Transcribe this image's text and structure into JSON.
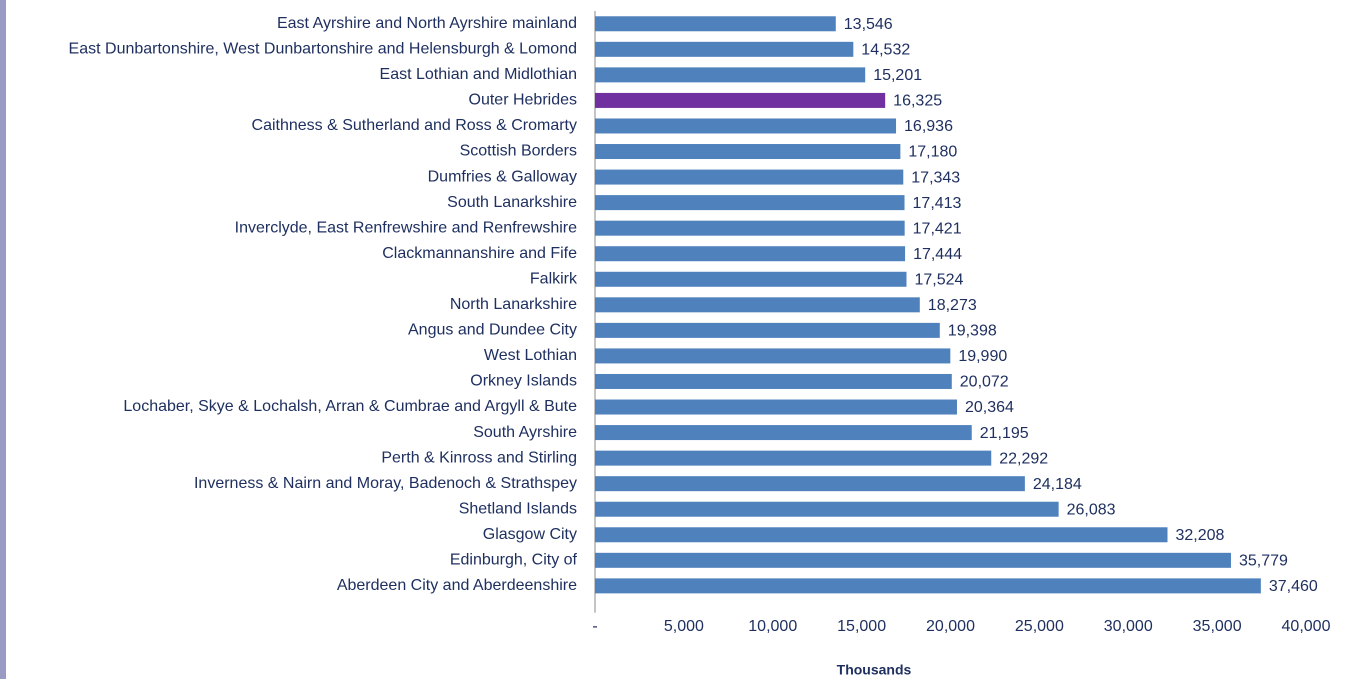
{
  "chart_data": {
    "type": "barh",
    "categories": [
      "East Ayrshire and North Ayrshire mainland",
      "East Dunbartonshire, West Dunbartonshire and Helensburgh & Lomond",
      "East Lothian and Midlothian",
      "Outer Hebrides",
      "Caithness & Sutherland and Ross & Cromarty",
      "Scottish Borders",
      "Dumfries & Galloway",
      "South Lanarkshire",
      "Inverclyde, East Renfrewshire and Renfrewshire",
      "Clackmannanshire and Fife",
      "Falkirk",
      "North Lanarkshire",
      "Angus and Dundee City",
      "West Lothian",
      "Orkney Islands",
      "Lochaber, Skye & Lochalsh, Arran & Cumbrae and Argyll & Bute",
      "South Ayrshire",
      "Perth & Kinross and Stirling",
      "Inverness & Nairn and Moray, Badenoch & Strathspey",
      "Shetland Islands",
      "Glasgow City",
      "Edinburgh, City of",
      "Aberdeen City and Aberdeenshire"
    ],
    "values": [
      13546,
      14532,
      15201,
      16325,
      16936,
      17180,
      17343,
      17413,
      17421,
      17444,
      17524,
      18273,
      19398,
      19990,
      20072,
      20364,
      21195,
      22292,
      24184,
      26083,
      32208,
      35779,
      37460
    ],
    "value_labels": [
      "13,546",
      "14,532",
      "15,201",
      "16,325",
      "16,936",
      "17,180",
      "17,343",
      "17,413",
      "17,421",
      "17,444",
      "17,524",
      "18,273",
      "19,398",
      "19,990",
      "20,072",
      "20,364",
      "21,195",
      "22,292",
      "24,184",
      "26,083",
      "32,208",
      "35,779",
      "37,460"
    ],
    "colors": [
      "#4f81bd",
      "#4f81bd",
      "#4f81bd",
      "#7030a0",
      "#4f81bd",
      "#4f81bd",
      "#4f81bd",
      "#4f81bd",
      "#4f81bd",
      "#4f81bd",
      "#4f81bd",
      "#4f81bd",
      "#4f81bd",
      "#4f81bd",
      "#4f81bd",
      "#4f81bd",
      "#4f81bd",
      "#4f81bd",
      "#4f81bd",
      "#4f81bd",
      "#4f81bd",
      "#4f81bd",
      "#4f81bd"
    ],
    "xlabel": "Thousands",
    "xlim": [
      0,
      40000
    ],
    "xticks": [
      {
        "value": 0,
        "label": "-"
      },
      {
        "value": 5000,
        "label": "5,000"
      },
      {
        "value": 10000,
        "label": "10,000"
      },
      {
        "value": 15000,
        "label": "15,000"
      },
      {
        "value": 20000,
        "label": "20,000"
      },
      {
        "value": 25000,
        "label": "25,000"
      },
      {
        "value": 30000,
        "label": "30,000"
      },
      {
        "value": 35000,
        "label": "35,000"
      },
      {
        "value": 40000,
        "label": "40,000"
      }
    ]
  }
}
